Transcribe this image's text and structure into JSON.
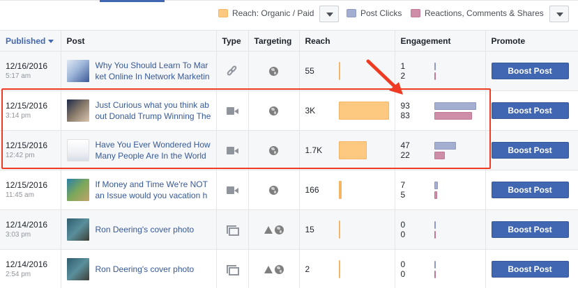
{
  "legend": {
    "reach": {
      "label": "Reach: Organic / Paid",
      "color": "#fdc880"
    },
    "clicks": {
      "label": "Post Clicks",
      "color": "#a3aed0"
    },
    "reactions": {
      "label": "Reactions, Comments & Shares",
      "color": "#cf8ea8"
    }
  },
  "headers": {
    "published": "Published",
    "post": "Post",
    "type": "Type",
    "targeting": "Targeting",
    "reach": "Reach",
    "engagement": "Engagement",
    "promote": "Promote"
  },
  "rows": [
    {
      "date": "12/16/2016",
      "time": "5:17 am",
      "title": "Why You Should Learn To Market Online In Network Marketing -",
      "type": "link",
      "targeting": "public",
      "reach": "55",
      "reach_fraction": 0.02,
      "clicks": "1",
      "reactions": "2",
      "clicks_fraction": 0.02,
      "reactions_fraction": 0.02,
      "boost": "Boost Post"
    },
    {
      "date": "12/15/2016",
      "time": "3:14 pm",
      "title": "Just Curious what you think about Donald Trump Winning The P",
      "type": "video",
      "targeting": "public",
      "reach": "3K",
      "reach_fraction": 1.0,
      "clicks": "93",
      "reactions": "83",
      "clicks_fraction": 1.0,
      "reactions_fraction": 0.9,
      "boost": "Boost Post"
    },
    {
      "date": "12/15/2016",
      "time": "12:42 pm",
      "title": "Have You Ever Wondered How Many People Are In the World a",
      "type": "video",
      "targeting": "public",
      "reach": "1.7K",
      "reach_fraction": 0.55,
      "clicks": "47",
      "reactions": "22",
      "clicks_fraction": 0.52,
      "reactions_fraction": 0.25,
      "boost": "Boost Post"
    },
    {
      "date": "12/15/2016",
      "time": "11:45 am",
      "title": "If Money and Time We're NOT an Issue would you vacation here",
      "type": "video",
      "targeting": "public",
      "reach": "166",
      "reach_fraction": 0.06,
      "clicks": "7",
      "reactions": "5",
      "clicks_fraction": 0.08,
      "reactions_fraction": 0.06,
      "boost": "Boost Post"
    },
    {
      "date": "12/14/2016",
      "time": "3:03 pm",
      "title": "Ron Deering's cover photo",
      "type": "album",
      "targeting": "restricted-public",
      "reach": "15",
      "reach_fraction": 0.02,
      "clicks": "0",
      "reactions": "0",
      "clicks_fraction": 0.02,
      "reactions_fraction": 0.02,
      "boost": "Boost Post"
    },
    {
      "date": "12/14/2016",
      "time": "2:54 pm",
      "title": "Ron Deering's cover photo",
      "type": "album",
      "targeting": "restricted-public",
      "reach": "2",
      "reach_fraction": 0.02,
      "clicks": "0",
      "reactions": "0",
      "clicks_fraction": 0.02,
      "reactions_fraction": 0.02,
      "boost": "Boost Post"
    }
  ]
}
